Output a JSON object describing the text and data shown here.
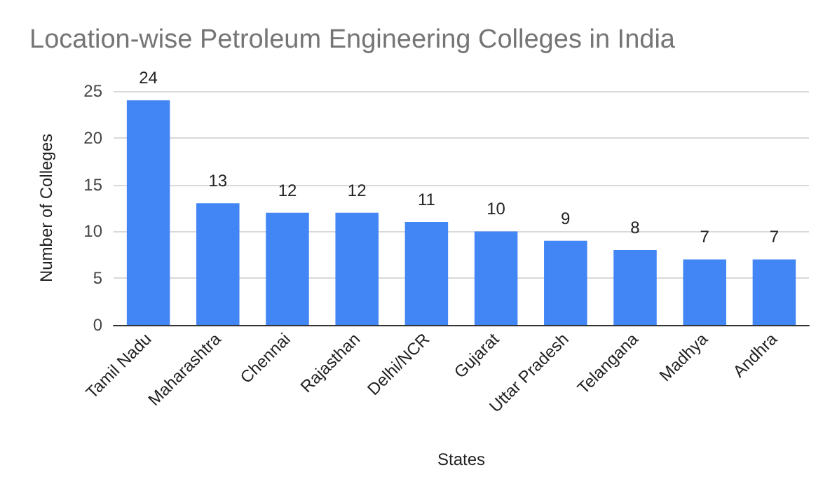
{
  "chart_data": {
    "type": "bar",
    "title": "Location-wise Petroleum Engineering Colleges in India",
    "xlabel": "States",
    "ylabel": "Number of Colleges",
    "categories": [
      "Tamil Nadu",
      "Maharashtra",
      "Chennai",
      "Rajasthan",
      "Delhi/NCR",
      "Gujarat",
      "Uttar Pradesh",
      "Telangana",
      "Madhya",
      "Andhra"
    ],
    "values": [
      24,
      13,
      12,
      12,
      11,
      10,
      9,
      8,
      7,
      7
    ],
    "color": "#4285f4",
    "ylim": [
      0,
      25
    ],
    "yticks": [
      0,
      5,
      10,
      15,
      20,
      25
    ],
    "grid": "y",
    "data_labels": true
  }
}
